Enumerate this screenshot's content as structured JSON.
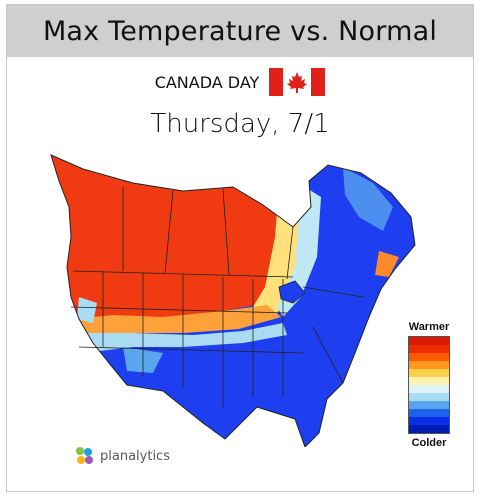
{
  "header": {
    "title": "Max Temperature vs. Normal"
  },
  "subtitle": {
    "text": "CANADA DAY"
  },
  "date": {
    "text": "Thursday, 7/1"
  },
  "legend": {
    "top_label": "Warmer",
    "bottom_label": "Colder",
    "colors": [
      "#d81a00",
      "#ee2c00",
      "#fb5a00",
      "#fd9a1c",
      "#fdd24a",
      "#fbf2b4",
      "#dff3f8",
      "#a9dcf2",
      "#5aa6ec",
      "#1e63f0",
      "#0a2fe6",
      "#001cb0"
    ]
  },
  "logo": {
    "text": "planalytics"
  },
  "colors": {
    "warm": "#f03a14",
    "cold": "#1d3ff0",
    "header_bg": "#cfcfcf"
  }
}
